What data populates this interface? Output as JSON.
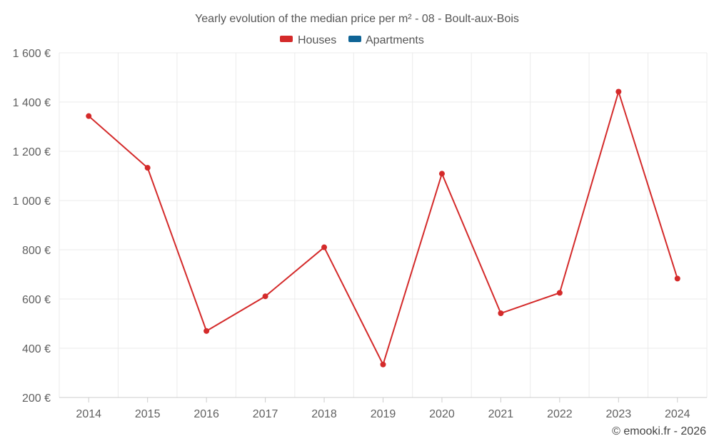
{
  "chart_data": {
    "type": "line",
    "title": "Yearly evolution of the median price per m² - 08 - Boult-aux-Bois",
    "categories": [
      "2014",
      "2015",
      "2016",
      "2017",
      "2018",
      "2019",
      "2020",
      "2021",
      "2022",
      "2023",
      "2024"
    ],
    "series": [
      {
        "name": "Houses",
        "color": "#d42a2a",
        "values": [
          1343,
          1133,
          470,
          611,
          810,
          334,
          1109,
          542,
          625,
          1442,
          683
        ]
      },
      {
        "name": "Apartments",
        "color": "#0f6496",
        "values": [
          null,
          null,
          null,
          null,
          null,
          null,
          null,
          null,
          null,
          null,
          null
        ]
      }
    ],
    "ylim": [
      200,
      1600
    ],
    "yticks": [
      200,
      400,
      600,
      800,
      1000,
      1200,
      1400,
      1600
    ],
    "ytick_labels": [
      "200 €",
      "400 €",
      "600 €",
      "800 €",
      "1 000 €",
      "1 200 €",
      "1 400 €",
      "1 600 €"
    ],
    "xlabel": "",
    "ylabel": "",
    "grid": true,
    "legend_position": "top-center"
  },
  "credit": "© emooki.fr - 2026"
}
